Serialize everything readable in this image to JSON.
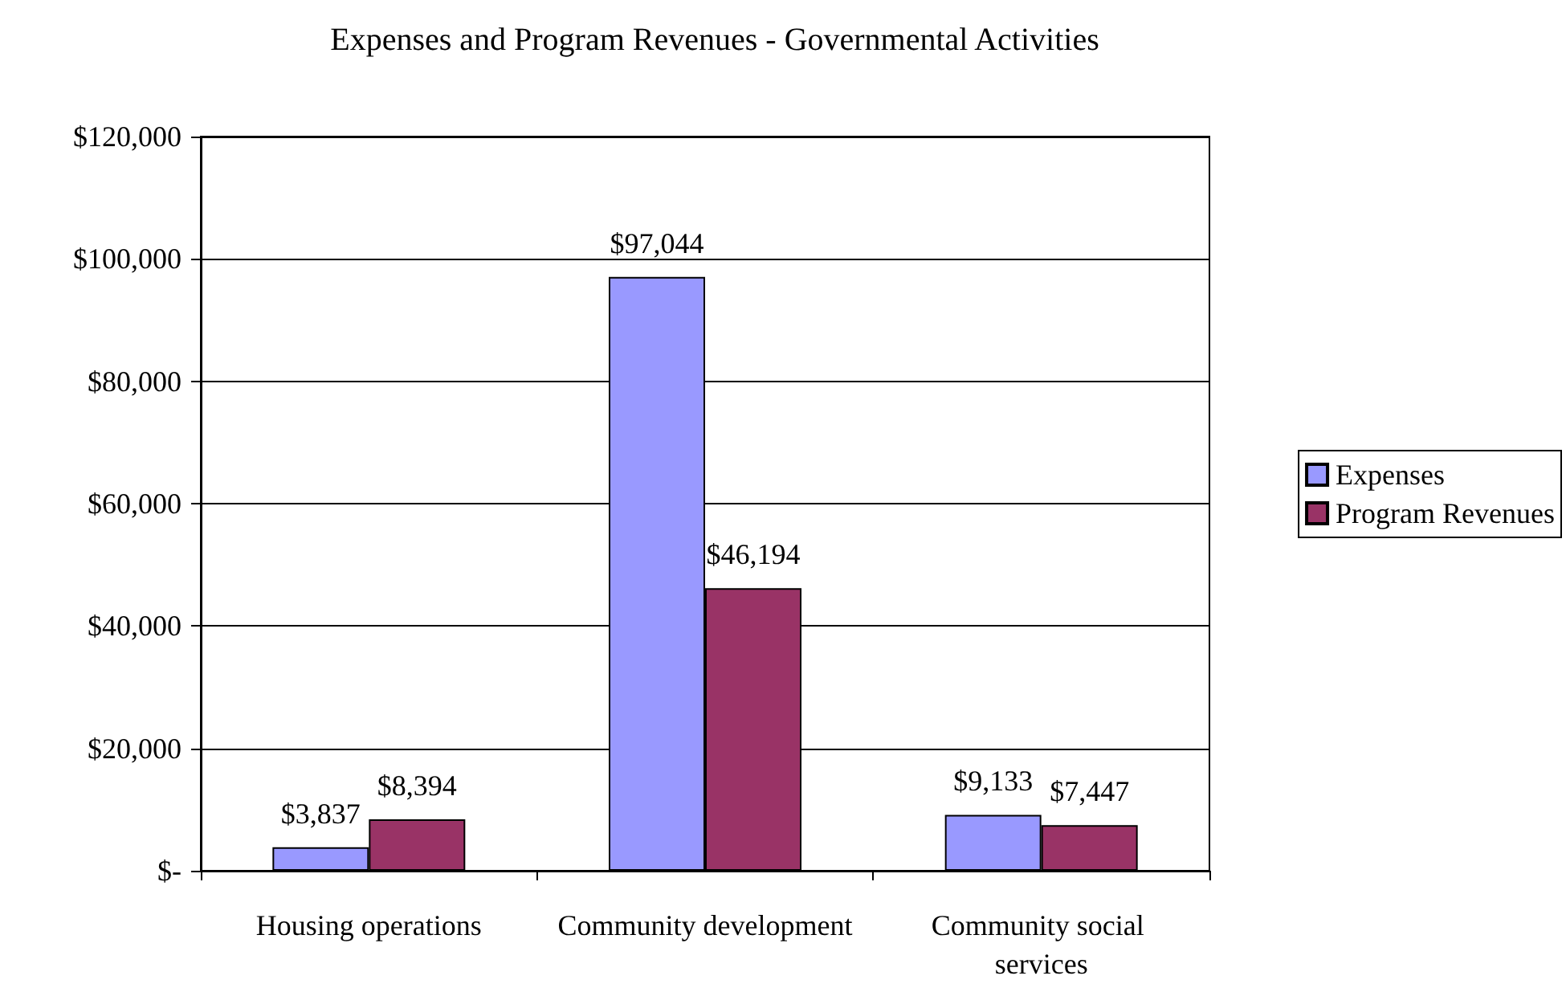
{
  "chart_data": {
    "type": "bar",
    "title": "Expenses and Program Revenues - Governmental Activities",
    "categories": [
      "Housing operations",
      "Community development",
      "Community social services"
    ],
    "series": [
      {
        "name": "Expenses",
        "color": "#9999ff",
        "values": [
          3837,
          97044,
          9133
        ],
        "value_labels": [
          "$3,837",
          "$97,044",
          "$9,133"
        ]
      },
      {
        "name": "Program Revenues",
        "color": "#993366",
        "values": [
          8394,
          46194,
          7447
        ],
        "value_labels": [
          "$8,394",
          "$46,194",
          "$7,447"
        ]
      }
    ],
    "ylim": [
      0,
      120000
    ],
    "yticks": [
      {
        "value": 0,
        "label": "$-"
      },
      {
        "value": 20000,
        "label": "$20,000"
      },
      {
        "value": 40000,
        "label": "$40,000"
      },
      {
        "value": 60000,
        "label": "$60,000"
      },
      {
        "value": 80000,
        "label": "$80,000"
      },
      {
        "value": 100000,
        "label": "$100,000"
      },
      {
        "value": 120000,
        "label": "$120,000"
      }
    ],
    "grid": "y",
    "legend": "right"
  }
}
